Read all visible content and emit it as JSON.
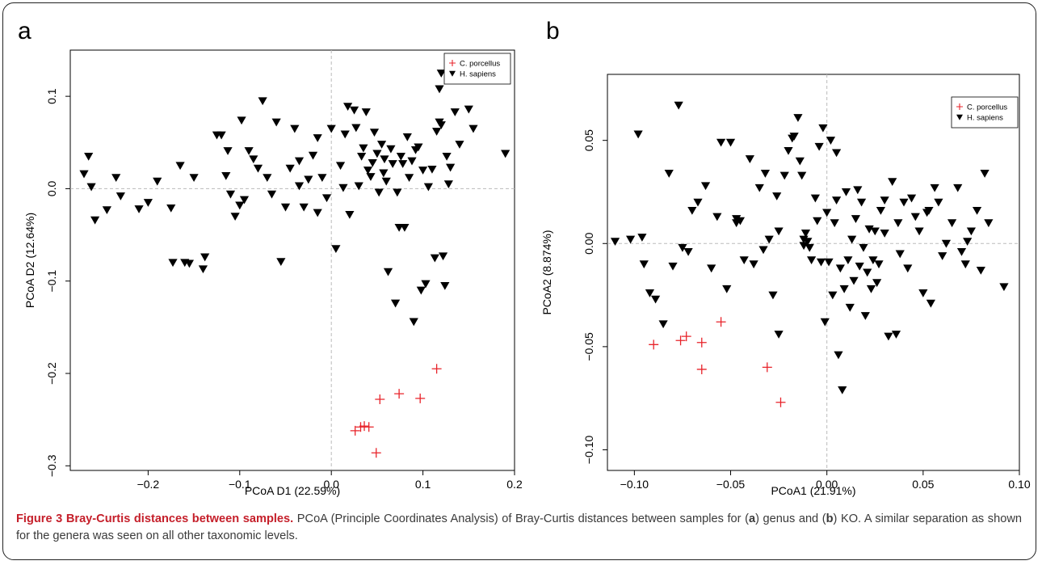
{
  "caption": {
    "head": "Figure 3 Bray-Curtis distances between samples.",
    "body_segments": [
      {
        "text": " PCoA (Principle Coordinates Analysis) of Bray-Curtis distances between samples for (",
        "bold": false
      },
      {
        "text": "a",
        "bold": true
      },
      {
        "text": ") genus and (",
        "bold": false
      },
      {
        "text": "b",
        "bold": true
      },
      {
        "text": ") KO. A similar separation as shown for the genera was seen on all other taxonomic levels.",
        "bold": false
      }
    ]
  },
  "colors": {
    "human": "#000000",
    "guinea_pig": "#e8232a",
    "reference_line": "#bbbbbb",
    "axis": "#000000"
  },
  "chart_data": [
    {
      "type": "scatter",
      "panel_label": "a",
      "xlabel": "PCoA D1 (22.59%)",
      "ylabel": "PCoA D2 (12.64%)",
      "xlim": [
        -0.285,
        0.2
      ],
      "ylim": [
        -0.305,
        0.15
      ],
      "xticks": [
        -0.2,
        -0.1,
        0.0,
        0.1,
        0.2
      ],
      "xtick_labels": [
        "−0.2",
        "−0.1",
        "0.0",
        "0.1",
        "0.2"
      ],
      "yticks": [
        -0.3,
        -0.2,
        -0.1,
        0.0,
        0.1
      ],
      "ytick_labels": [
        "−0.3",
        "−0.2",
        "−0.1",
        "0.0",
        "0.1"
      ],
      "reference_lines": {
        "x": 0,
        "y": 0
      },
      "legend_position": "top-right",
      "series": [
        {
          "name": "C. porcellus",
          "marker": "plus",
          "color": "#e8232a",
          "points": [
            [
              0.115,
              -0.195
            ],
            [
              0.074,
              -0.222
            ],
            [
              0.097,
              -0.227
            ],
            [
              0.053,
              -0.228
            ],
            [
              0.026,
              -0.262
            ],
            [
              0.032,
              -0.258
            ],
            [
              0.036,
              -0.257
            ],
            [
              0.041,
              -0.258
            ],
            [
              0.049,
              -0.286
            ]
          ]
        },
        {
          "name": "H. sapiens",
          "marker": "triangle-down",
          "color": "#000000",
          "points": [
            [
              -0.27,
              0.016
            ],
            [
              -0.265,
              0.035
            ],
            [
              -0.262,
              0.002
            ],
            [
              -0.258,
              -0.034
            ],
            [
              -0.245,
              -0.023
            ],
            [
              -0.235,
              0.012
            ],
            [
              -0.23,
              -0.008
            ],
            [
              -0.21,
              -0.022
            ],
            [
              -0.2,
              -0.015
            ],
            [
              -0.19,
              0.008
            ],
            [
              -0.175,
              -0.021
            ],
            [
              -0.173,
              -0.08
            ],
            [
              -0.165,
              0.025
            ],
            [
              -0.16,
              -0.08
            ],
            [
              -0.155,
              -0.081
            ],
            [
              -0.15,
              0.012
            ],
            [
              -0.14,
              -0.087
            ],
            [
              -0.138,
              -0.074
            ],
            [
              -0.125,
              0.058
            ],
            [
              -0.12,
              0.058
            ],
            [
              -0.115,
              0.014
            ],
            [
              -0.113,
              0.041
            ],
            [
              -0.11,
              -0.006
            ],
            [
              -0.105,
              -0.03
            ],
            [
              -0.1,
              -0.018
            ],
            [
              -0.098,
              0.074
            ],
            [
              -0.095,
              -0.012
            ],
            [
              -0.09,
              0.041
            ],
            [
              -0.085,
              0.032
            ],
            [
              -0.08,
              0.022
            ],
            [
              -0.075,
              0.095
            ],
            [
              -0.07,
              0.012
            ],
            [
              -0.065,
              -0.006
            ],
            [
              -0.06,
              0.072
            ],
            [
              -0.055,
              -0.079
            ],
            [
              -0.05,
              -0.02
            ],
            [
              -0.045,
              0.022
            ],
            [
              -0.04,
              0.065
            ],
            [
              -0.035,
              0.03
            ],
            [
              -0.03,
              -0.02
            ],
            [
              -0.025,
              0.01
            ],
            [
              -0.02,
              0.036
            ],
            [
              -0.015,
              -0.026
            ],
            [
              -0.01,
              0.012
            ],
            [
              -0.005,
              -0.01
            ],
            [
              0.0,
              0.065
            ],
            [
              0.005,
              -0.065
            ],
            [
              0.01,
              0.025
            ],
            [
              0.013,
              0.001
            ],
            [
              0.015,
              0.059
            ],
            [
              0.018,
              0.089
            ],
            [
              0.02,
              -0.028
            ],
            [
              0.025,
              0.085
            ],
            [
              0.027,
              0.066
            ],
            [
              0.03,
              0.003
            ],
            [
              0.033,
              0.035
            ],
            [
              0.035,
              0.044
            ],
            [
              0.038,
              0.083
            ],
            [
              0.04,
              0.02
            ],
            [
              0.043,
              0.013
            ],
            [
              0.045,
              0.028
            ],
            [
              0.047,
              0.061
            ],
            [
              0.05,
              0.038
            ],
            [
              0.052,
              -0.004
            ],
            [
              0.055,
              0.048
            ],
            [
              0.057,
              0.017
            ],
            [
              0.06,
              0.008
            ],
            [
              0.062,
              -0.09
            ],
            [
              0.065,
              0.043
            ],
            [
              0.067,
              0.027
            ],
            [
              0.07,
              -0.124
            ],
            [
              0.072,
              -0.004
            ],
            [
              0.074,
              -0.042
            ],
            [
              0.076,
              0.035
            ],
            [
              0.078,
              0.027
            ],
            [
              0.08,
              -0.042
            ],
            [
              0.083,
              0.056
            ],
            [
              0.085,
              0.012
            ],
            [
              0.088,
              0.03
            ],
            [
              0.09,
              -0.144
            ],
            [
              0.092,
              0.042
            ],
            [
              0.095,
              0.045
            ],
            [
              0.098,
              -0.11
            ],
            [
              0.1,
              0.02
            ],
            [
              0.103,
              -0.103
            ],
            [
              0.106,
              0.002
            ],
            [
              0.11,
              0.021
            ],
            [
              0.113,
              -0.075
            ],
            [
              0.115,
              0.062
            ],
            [
              0.118,
              0.108
            ],
            [
              0.12,
              0.125
            ],
            [
              0.122,
              -0.073
            ],
            [
              0.124,
              -0.105
            ],
            [
              0.126,
              0.035
            ],
            [
              0.128,
              0.005
            ],
            [
              0.13,
              0.023
            ],
            [
              0.135,
              0.083
            ],
            [
              0.14,
              0.048
            ],
            [
              0.15,
              0.086
            ],
            [
              0.155,
              0.065
            ],
            [
              0.19,
              0.038
            ],
            [
              0.118,
              0.072
            ],
            [
              0.12,
              0.069
            ],
            [
              0.058,
              0.032
            ],
            [
              -0.035,
              0.003
            ],
            [
              -0.015,
              0.055
            ]
          ]
        }
      ]
    },
    {
      "type": "scatter",
      "panel_label": "b",
      "xlabel": "PCoA1 (21.91%)",
      "ylabel": "PCoA2 (8.874%)",
      "xlim": [
        -0.114,
        0.1
      ],
      "ylim": [
        -0.11,
        0.082
      ],
      "xticks": [
        -0.1,
        -0.05,
        0.0,
        0.05,
        0.1
      ],
      "xtick_labels": [
        "−0.10",
        "−0.05",
        "0.00",
        "0.05",
        "0.10"
      ],
      "yticks": [
        -0.1,
        -0.05,
        0.0,
        0.05
      ],
      "ytick_labels": [
        "−0.10",
        "−0.05",
        "0.00",
        "0.05"
      ],
      "reference_lines": {
        "x": 0,
        "y": 0
      },
      "legend_position": "top-right",
      "series": [
        {
          "name": "C. porcellus",
          "marker": "plus",
          "color": "#e8232a",
          "points": [
            [
              -0.09,
              -0.049
            ],
            [
              -0.076,
              -0.047
            ],
            [
              -0.073,
              -0.045
            ],
            [
              -0.065,
              -0.048
            ],
            [
              -0.065,
              -0.061
            ],
            [
              -0.055,
              -0.038
            ],
            [
              -0.031,
              -0.06
            ],
            [
              -0.024,
              -0.077
            ]
          ]
        },
        {
          "name": "H. sapiens",
          "marker": "triangle-down",
          "color": "#000000",
          "points": [
            [
              -0.11,
              0.001
            ],
            [
              -0.102,
              0.002
            ],
            [
              -0.098,
              0.053
            ],
            [
              -0.096,
              0.003
            ],
            [
              -0.095,
              -0.01
            ],
            [
              -0.092,
              -0.024
            ],
            [
              -0.089,
              -0.027
            ],
            [
              -0.085,
              -0.039
            ],
            [
              -0.082,
              0.034
            ],
            [
              -0.08,
              -0.011
            ],
            [
              -0.077,
              0.067
            ],
            [
              -0.075,
              -0.002
            ],
            [
              -0.072,
              -0.004
            ],
            [
              -0.07,
              0.016
            ],
            [
              -0.067,
              0.02
            ],
            [
              -0.063,
              0.028
            ],
            [
              -0.06,
              -0.012
            ],
            [
              -0.057,
              0.013
            ],
            [
              -0.055,
              0.049
            ],
            [
              -0.052,
              -0.022
            ],
            [
              -0.05,
              0.049
            ],
            [
              -0.047,
              0.01
            ],
            [
              -0.045,
              0.011
            ],
            [
              -0.043,
              -0.008
            ],
            [
              -0.04,
              0.041
            ],
            [
              -0.038,
              -0.01
            ],
            [
              -0.035,
              0.027
            ],
            [
              -0.033,
              -0.003
            ],
            [
              -0.032,
              0.034
            ],
            [
              -0.03,
              0.002
            ],
            [
              -0.028,
              -0.025
            ],
            [
              -0.026,
              0.023
            ],
            [
              -0.025,
              -0.044
            ],
            [
              -0.022,
              0.033
            ],
            [
              -0.02,
              0.045
            ],
            [
              -0.018,
              0.051
            ],
            [
              -0.017,
              0.052
            ],
            [
              -0.015,
              0.061
            ],
            [
              -0.014,
              0.04
            ],
            [
              -0.013,
              0.033
            ],
            [
              -0.012,
              0.002
            ],
            [
              -0.011,
              0.005
            ],
            [
              -0.01,
              0.001
            ],
            [
              -0.009,
              -0.002
            ],
            [
              -0.008,
              -0.008
            ],
            [
              -0.006,
              0.022
            ],
            [
              -0.005,
              0.011
            ],
            [
              -0.004,
              0.047
            ],
            [
              -0.003,
              -0.009
            ],
            [
              -0.002,
              0.056
            ],
            [
              -0.001,
              -0.038
            ],
            [
              0.0,
              0.015
            ],
            [
              0.001,
              -0.009
            ],
            [
              0.002,
              0.05
            ],
            [
              0.003,
              -0.025
            ],
            [
              0.004,
              0.01
            ],
            [
              0.005,
              0.021
            ],
            [
              0.006,
              -0.054
            ],
            [
              0.007,
              -0.012
            ],
            [
              0.008,
              -0.071
            ],
            [
              0.009,
              -0.022
            ],
            [
              0.01,
              0.025
            ],
            [
              0.011,
              -0.008
            ],
            [
              0.012,
              -0.031
            ],
            [
              0.013,
              0.002
            ],
            [
              0.014,
              -0.018
            ],
            [
              0.015,
              0.012
            ],
            [
              0.016,
              0.026
            ],
            [
              0.017,
              -0.011
            ],
            [
              0.018,
              0.02
            ],
            [
              0.019,
              -0.002
            ],
            [
              0.02,
              -0.035
            ],
            [
              0.021,
              -0.014
            ],
            [
              0.022,
              0.007
            ],
            [
              0.023,
              -0.022
            ],
            [
              0.024,
              -0.008
            ],
            [
              0.025,
              0.006
            ],
            [
              0.026,
              -0.019
            ],
            [
              0.027,
              -0.01
            ],
            [
              0.028,
              0.016
            ],
            [
              0.03,
              0.005
            ],
            [
              0.032,
              -0.045
            ],
            [
              0.034,
              0.03
            ],
            [
              0.036,
              -0.044
            ],
            [
              0.037,
              0.01
            ],
            [
              0.038,
              -0.005
            ],
            [
              0.04,
              0.02
            ],
            [
              0.042,
              -0.012
            ],
            [
              0.044,
              0.022
            ],
            [
              0.046,
              0.013
            ],
            [
              0.048,
              0.006
            ],
            [
              0.05,
              -0.024
            ],
            [
              0.052,
              0.015
            ],
            [
              0.054,
              -0.029
            ],
            [
              0.056,
              0.027
            ],
            [
              0.058,
              0.02
            ],
            [
              0.06,
              -0.006
            ],
            [
              0.062,
              0.0
            ],
            [
              0.065,
              0.01
            ],
            [
              0.068,
              0.027
            ],
            [
              0.07,
              -0.004
            ],
            [
              0.072,
              -0.01
            ],
            [
              0.075,
              0.006
            ],
            [
              0.078,
              0.016
            ],
            [
              0.08,
              -0.013
            ],
            [
              0.082,
              0.034
            ],
            [
              0.084,
              0.01
            ],
            [
              0.092,
              -0.021
            ],
            [
              0.073,
              0.001
            ],
            [
              0.005,
              0.044
            ],
            [
              -0.047,
              0.012
            ],
            [
              -0.025,
              0.006
            ],
            [
              -0.012,
              -0.001
            ],
            [
              0.03,
              0.021
            ],
            [
              0.053,
              0.016
            ]
          ]
        }
      ]
    }
  ]
}
